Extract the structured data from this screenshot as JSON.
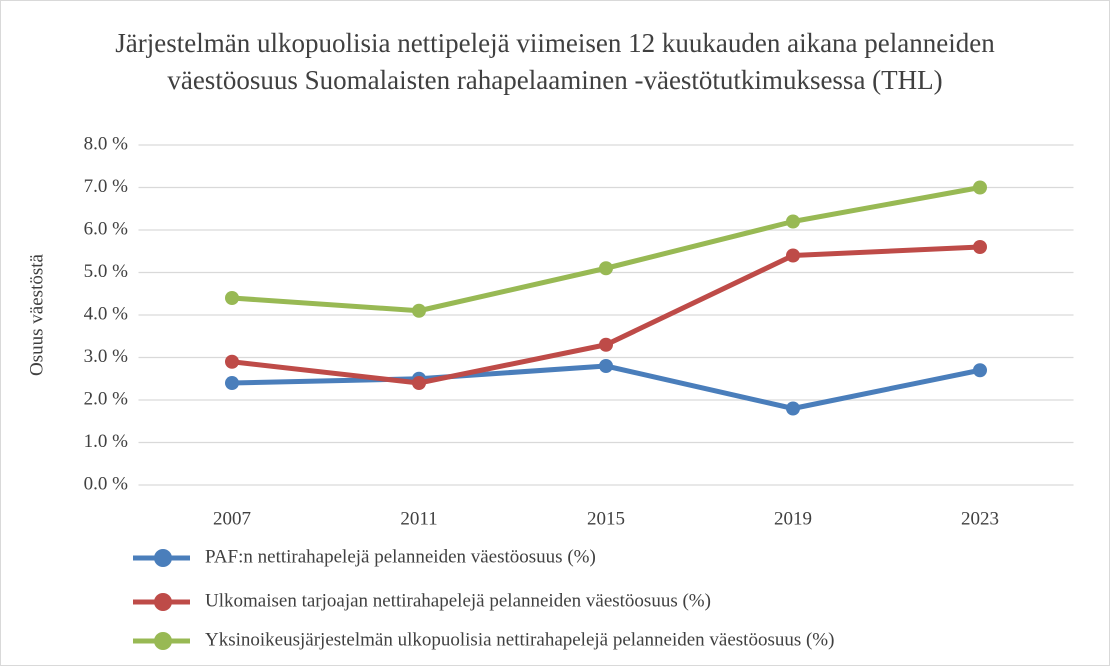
{
  "chart_data": {
    "type": "line",
    "title": [
      "Järjestelmän ulkopuolisia nettipelejä viimeisen 12 kuukauden aikana pelanneiden",
      "väestöosuus Suomalaisten rahapelaaminen -väestötutkimuksessa (THL)"
    ],
    "y_label": "Osuus väestöstä",
    "categories": [
      "2007",
      "2011",
      "2015",
      "2019",
      "2023"
    ],
    "series": [
      {
        "name": "PAF:n nettirahapelejä pelanneiden väestöosuus (%)",
        "color": "#4a7ebb",
        "values": [
          2.4,
          2.5,
          2.8,
          1.8,
          2.7
        ]
      },
      {
        "name": "Ulkomaisen tarjoajan nettirahapelejä pelanneiden väestöosuus (%)",
        "color": "#be4b48",
        "values": [
          2.9,
          2.4,
          3.3,
          5.4,
          5.6
        ]
      },
      {
        "name": "Yksinoikeusjärjestelmän ulkopuolisia nettirahapelejä pelanneiden väestöosuus (%)",
        "color": "#98b954",
        "values": [
          4.4,
          4.1,
          5.1,
          6.2,
          7.0
        ]
      }
    ],
    "ylim": [
      0,
      8
    ],
    "yticks": [
      {
        "value": 0,
        "label": "0.0 %"
      },
      {
        "value": 1,
        "label": "1.0 %"
      },
      {
        "value": 2,
        "label": "2.0 %"
      },
      {
        "value": 3,
        "label": "3.0 %"
      },
      {
        "value": 4,
        "label": "4.0 %"
      },
      {
        "value": 5,
        "label": "5.0 %"
      },
      {
        "value": 6,
        "label": "6.0 %"
      },
      {
        "value": 7,
        "label": "7.0 %"
      },
      {
        "value": 8,
        "label": "8.0 %"
      }
    ],
    "grid": true,
    "legend": "bottom"
  }
}
